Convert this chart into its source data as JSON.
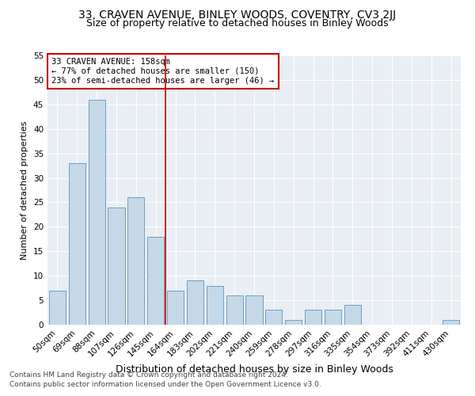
{
  "title": "33, CRAVEN AVENUE, BINLEY WOODS, COVENTRY, CV3 2JJ",
  "subtitle": "Size of property relative to detached houses in Binley Woods",
  "xlabel": "Distribution of detached houses by size in Binley Woods",
  "ylabel": "Number of detached properties",
  "categories": [
    "50sqm",
    "69sqm",
    "88sqm",
    "107sqm",
    "126sqm",
    "145sqm",
    "164sqm",
    "183sqm",
    "202sqm",
    "221sqm",
    "240sqm",
    "259sqm",
    "278sqm",
    "297sqm",
    "316sqm",
    "335sqm",
    "354sqm",
    "373sqm",
    "392sqm",
    "411sqm",
    "430sqm"
  ],
  "values": [
    7,
    33,
    46,
    24,
    26,
    18,
    7,
    9,
    8,
    6,
    6,
    3,
    1,
    3,
    3,
    4,
    0,
    0,
    0,
    0,
    1
  ],
  "bar_color": "#c5d8e8",
  "bar_edge_color": "#6aa0c0",
  "vline_color": "#cc0000",
  "annotation_text": "33 CRAVEN AVENUE: 158sqm\n← 77% of detached houses are smaller (150)\n23% of semi-detached houses are larger (46) →",
  "annotation_box_color": "#ffffff",
  "annotation_box_edge_color": "#cc0000",
  "ylim": [
    0,
    55
  ],
  "yticks": [
    0,
    5,
    10,
    15,
    20,
    25,
    30,
    35,
    40,
    45,
    50,
    55
  ],
  "bg_color": "#e8eef4",
  "footer_line1": "Contains HM Land Registry data © Crown copyright and database right 2024.",
  "footer_line2": "Contains public sector information licensed under the Open Government Licence v3.0.",
  "title_fontsize": 10,
  "subtitle_fontsize": 9,
  "xlabel_fontsize": 9,
  "ylabel_fontsize": 8,
  "tick_fontsize": 7.5,
  "annotation_fontsize": 7.5,
  "footer_fontsize": 6.5
}
